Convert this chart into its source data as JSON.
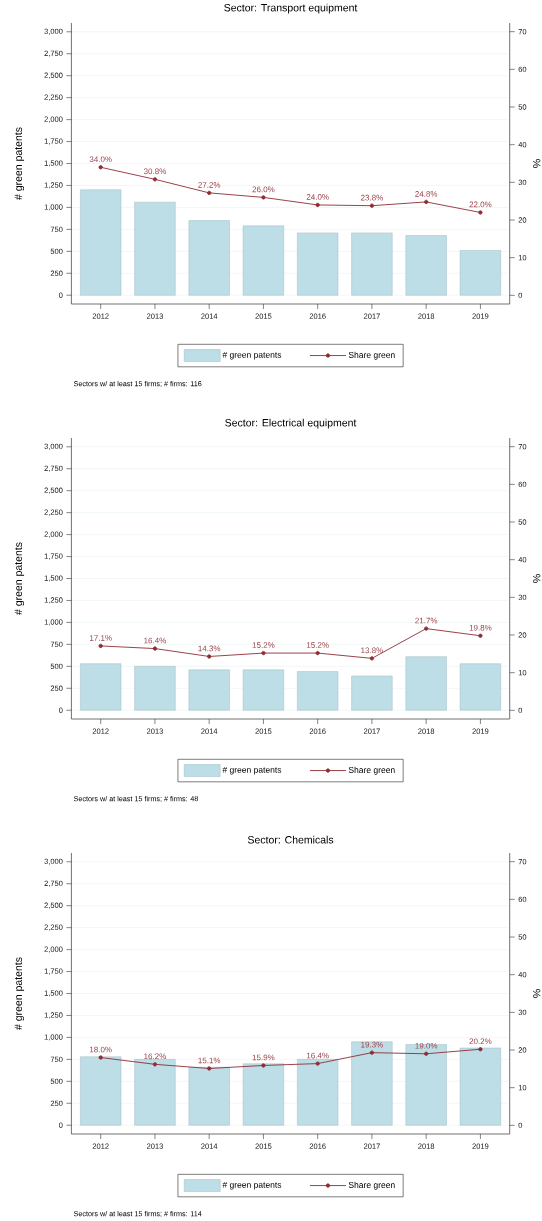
{
  "chart_data": [
    {
      "type": "bar",
      "title": "Sector: Transport equipment",
      "ylabel": "# green patents",
      "y2label": "%",
      "categories": [
        "2012",
        "2013",
        "2014",
        "2015",
        "2016",
        "2017",
        "2018",
        "2019"
      ],
      "series": [
        {
          "name": "# green patents",
          "color": "#bddee6",
          "values": [
            1200,
            1060,
            850,
            790,
            710,
            710,
            680,
            510
          ]
        },
        {
          "name": "Share green",
          "type": "line",
          "axis": "y2",
          "color": "#8f2d35",
          "marker": "circle",
          "line_style": "solid",
          "values": [
            34.0,
            30.8,
            27.2,
            26.0,
            24.0,
            23.8,
            24.8,
            22.0
          ],
          "value_labels": [
            "34.0%",
            "30.8%",
            "27.2%",
            "26.0%",
            "24.0%",
            "23.8%",
            "24.8%",
            "22.0%"
          ]
        }
      ],
      "ylim": [
        -100,
        3100
      ],
      "yticks": [
        0,
        250,
        500,
        750,
        {
          "value": 1000,
          "label": "1,000"
        },
        {
          "value": 1250,
          "label": "1,250"
        },
        {
          "value": 1500,
          "label": "1,500"
        },
        {
          "value": 1750,
          "label": "1,750"
        },
        {
          "value": 2000,
          "label": "2,000"
        },
        {
          "value": 2250,
          "label": "2,250"
        },
        {
          "value": 2500,
          "label": "2,500"
        },
        {
          "value": 2750,
          "label": "2,750"
        },
        {
          "value": 3000,
          "label": "3,000"
        }
      ],
      "y2lim": [
        -2.3,
        72.3
      ],
      "y2ticks": [
        0,
        10,
        20,
        30,
        40,
        50,
        60,
        70
      ],
      "grid": "y",
      "legend": "bottom",
      "annotations": [
        "Sectors w/ at least 15 firms; # firms: 116"
      ]
    },
    {
      "type": "bar",
      "title": "Sector: Electrical equipment",
      "ylabel": "# green patents",
      "y2label": "%",
      "categories": [
        "2012",
        "2013",
        "2014",
        "2015",
        "2016",
        "2017",
        "2018",
        "2019"
      ],
      "series": [
        {
          "name": "# green patents",
          "color": "#bddee6",
          "values": [
            530,
            500,
            460,
            460,
            440,
            390,
            610,
            530
          ]
        },
        {
          "name": "Share green",
          "type": "line",
          "axis": "y2",
          "color": "#8f2d35",
          "marker": "circle",
          "line_style": "solid",
          "values": [
            17.1,
            16.4,
            14.3,
            15.2,
            15.2,
            13.8,
            21.7,
            19.8
          ],
          "value_labels": [
            "17.1%",
            "16.4%",
            "14.3%",
            "15.2%",
            "15.2%",
            "13.8%",
            "21.7%",
            "19.8%"
          ]
        }
      ],
      "ylim": [
        -100,
        3100
      ],
      "yticks": [
        0,
        250,
        500,
        750,
        {
          "value": 1000,
          "label": "1,000"
        },
        {
          "value": 1250,
          "label": "1,250"
        },
        {
          "value": 1500,
          "label": "1,500"
        },
        {
          "value": 1750,
          "label": "1,750"
        },
        {
          "value": 2000,
          "label": "2,000"
        },
        {
          "value": 2250,
          "label": "2,250"
        },
        {
          "value": 2500,
          "label": "2,500"
        },
        {
          "value": 2750,
          "label": "2,750"
        },
        {
          "value": 3000,
          "label": "3,000"
        }
      ],
      "y2lim": [
        -2.3,
        72.3
      ],
      "y2ticks": [
        0,
        10,
        20,
        30,
        40,
        50,
        60,
        70
      ],
      "grid": "y",
      "legend": "bottom",
      "annotations": [
        "Sectors w/ at least 15 firms; # firms: 48"
      ]
    },
    {
      "type": "bar",
      "title": "Sector: Chemicals",
      "ylabel": "# green patents",
      "y2label": "%",
      "categories": [
        "2012",
        "2013",
        "2014",
        "2015",
        "2016",
        "2017",
        "2018",
        "2019"
      ],
      "series": [
        {
          "name": "# green patents",
          "color": "#bddee6",
          "values": [
            780,
            750,
            660,
            700,
            750,
            950,
            920,
            880
          ]
        },
        {
          "name": "Share green",
          "type": "line",
          "axis": "y2",
          "color": "#8f2d35",
          "marker": "circle",
          "line_style": "solid",
          "values": [
            18.0,
            16.2,
            15.1,
            15.9,
            16.4,
            19.3,
            19.0,
            20.2
          ],
          "value_labels": [
            "18.0%",
            "16.2%",
            "15.1%",
            "15.9%",
            "16.4%",
            "19.3%",
            "19.0%",
            "20.2%"
          ]
        }
      ],
      "ylim": [
        -100,
        3100
      ],
      "yticks": [
        0,
        250,
        500,
        750,
        {
          "value": 1000,
          "label": "1,000"
        },
        {
          "value": 1250,
          "label": "1,250"
        },
        {
          "value": 1500,
          "label": "1,500"
        },
        {
          "value": 1750,
          "label": "1,750"
        },
        {
          "value": 2000,
          "label": "2,000"
        },
        {
          "value": 2250,
          "label": "2,250"
        },
        {
          "value": 2500,
          "label": "2,500"
        },
        {
          "value": 2750,
          "label": "2,750"
        },
        {
          "value": 3000,
          "label": "3,000"
        }
      ],
      "y2lim": [
        -2.3,
        72.3
      ],
      "y2ticks": [
        0,
        10,
        20,
        30,
        40,
        50,
        60,
        70
      ],
      "grid": "y",
      "legend": "bottom",
      "annotations": [
        "Sectors w/ at least 15 firms; # firms: 114"
      ]
    }
  ]
}
